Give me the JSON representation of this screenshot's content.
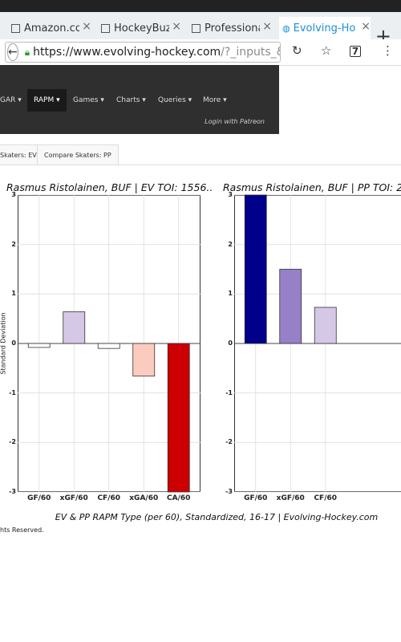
{
  "browser": {
    "tabs": [
      {
        "label": "Amazon.com"
      },
      {
        "label": "HockeyBuzz"
      },
      {
        "label": "Professional"
      },
      {
        "label": "Evolving-Ho"
      }
    ],
    "url_host": "https://www.evolving-hockey.com",
    "url_path": "/?_inputs_&d"
  },
  "nav": {
    "items": [
      {
        "label": "GAR ▾"
      },
      {
        "label": "RAPM ▾"
      },
      {
        "label": "Games ▾"
      },
      {
        "label": "Charts ▾"
      },
      {
        "label": "Queries ▾"
      },
      {
        "label": "More ▾"
      }
    ],
    "login": "Login with Patreon"
  },
  "subtabs": [
    {
      "label": "Skaters: EV"
    },
    {
      "label": "Compare Skaters: PP"
    }
  ],
  "chart_data": [
    {
      "type": "bar",
      "title": "Rasmus Ristolainen, BUF  |  EV TOI: 1556..",
      "ylabel": "Standard Deviation",
      "categories": [
        "GF/60",
        "xGF/60",
        "CF/60",
        "xGA/60",
        "CA/60"
      ],
      "values": [
        -0.08,
        0.64,
        -0.1,
        -0.66,
        -3.0
      ],
      "colors": [
        "#ffffff",
        "#d4c8e6",
        "#ffffff",
        "#fccbbf",
        "#cc0000"
      ],
      "ylim": [
        -3,
        3
      ],
      "yticks": [
        "3",
        "2",
        "1",
        "0",
        "-1",
        "-2",
        "-3"
      ],
      "grid": true
    },
    {
      "type": "bar",
      "title": "Rasmus Ristolainen, BUF  |  PP TOI: 2",
      "categories": [
        "GF/60",
        "xGF/60",
        "CF/60"
      ],
      "values": [
        3.0,
        1.5,
        0.73
      ],
      "colors": [
        "#00008b",
        "#9680c8",
        "#d4c8e6"
      ],
      "ylim": [
        -3,
        3
      ],
      "yticks": [
        "3",
        "2",
        "1",
        "0",
        "-1",
        "-2",
        "-3"
      ],
      "grid": true
    }
  ],
  "caption": "EV & PP RAPM Type (per 60), Standardized, 16-17    |    Evolving-Hockey.com",
  "footer": "hts Reserved."
}
